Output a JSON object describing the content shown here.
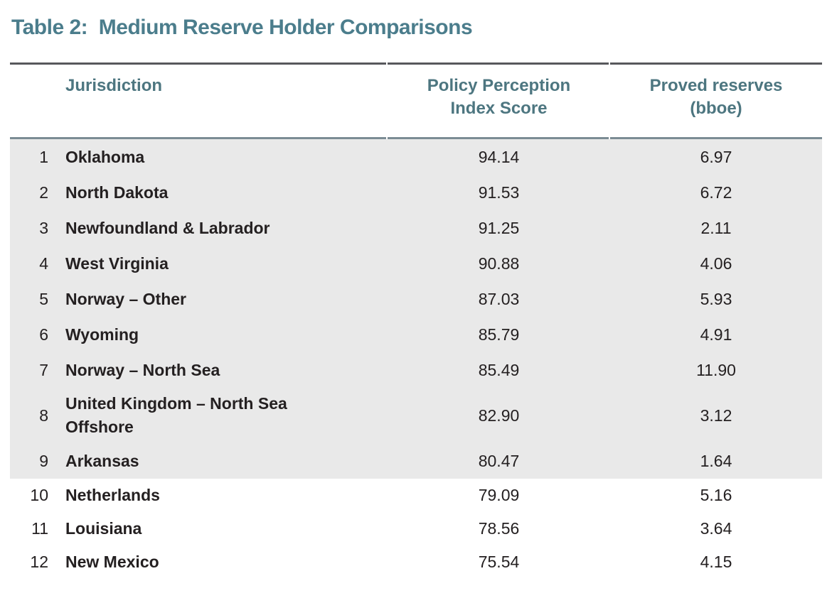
{
  "title": "Table 2:  Medium Reserve Holder Comparisons",
  "table": {
    "columns": [
      {
        "id": "jurisdiction",
        "label": "Jurisdiction"
      },
      {
        "id": "ppi",
        "label": "Policy Perception Index Score",
        "line1": "Policy Perception",
        "line2": "Index Score"
      },
      {
        "id": "reserves",
        "label": "Proved reserves (bboe)",
        "line1": "Proved reserves",
        "line2": "(bboe)"
      }
    ],
    "rows": [
      {
        "rank": "1",
        "jurisdiction": "Oklahoma",
        "ppi": "94.14",
        "reserves": "6.97",
        "shaded": true
      },
      {
        "rank": "2",
        "jurisdiction": "North Dakota",
        "ppi": "91.53",
        "reserves": "6.72",
        "shaded": true
      },
      {
        "rank": "3",
        "jurisdiction": "Newfoundland & Labrador",
        "ppi": "91.25",
        "reserves": "2.11",
        "shaded": true
      },
      {
        "rank": "4",
        "jurisdiction": "West Virginia",
        "ppi": "90.88",
        "reserves": "4.06",
        "shaded": true
      },
      {
        "rank": "5",
        "jurisdiction": "Norway – Other",
        "ppi": "87.03",
        "reserves": "5.93",
        "shaded": true
      },
      {
        "rank": "6",
        "jurisdiction": "Wyoming",
        "ppi": "85.79",
        "reserves": "4.91",
        "shaded": true
      },
      {
        "rank": "7",
        "jurisdiction": "Norway – North Sea",
        "ppi": "85.49",
        "reserves": "11.90",
        "shaded": true
      },
      {
        "rank": "8",
        "jurisdiction": "United Kingdom – North Sea Offshore",
        "ppi": "82.90",
        "reserves": "3.12",
        "shaded": true
      },
      {
        "rank": "9",
        "jurisdiction": "Arkansas",
        "ppi": "80.47",
        "reserves": "1.64",
        "shaded": true
      },
      {
        "rank": "10",
        "jurisdiction": "Netherlands",
        "ppi": "79.09",
        "reserves": "5.16",
        "shaded": false
      },
      {
        "rank": "11",
        "jurisdiction": "Louisiana",
        "ppi": "78.56",
        "reserves": "3.64",
        "shaded": false
      },
      {
        "rank": "12",
        "jurisdiction": "New Mexico",
        "ppi": "75.54",
        "reserves": "4.15",
        "shaded": false
      }
    ]
  },
  "colors": {
    "accent_teal": "#4b7d8c",
    "header_teal": "#4d7680",
    "shaded_row_bg": "#e9e9e9",
    "title_rule": "#57585c",
    "header_rule": "#7b8c94",
    "body_text": "#242021"
  }
}
